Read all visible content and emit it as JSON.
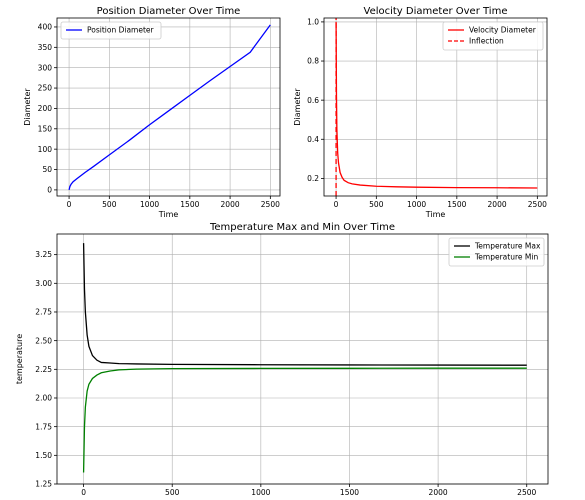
{
  "chart_data": [
    {
      "type": "line",
      "title": "Position Diameter Over Time",
      "xlabel": "Time",
      "ylabel": "Diameter",
      "xlim": [
        -150,
        2620
      ],
      "ylim": [
        -15,
        422
      ],
      "xticks": [
        0,
        500,
        1000,
        1500,
        2000,
        2500
      ],
      "yticks": [
        0,
        50,
        100,
        150,
        200,
        250,
        300,
        350,
        400
      ],
      "grid": true,
      "legend": "top-left",
      "series": [
        {
          "name": "Position Diameter",
          "color": "#0000ff",
          "x": [
            0,
            10,
            25,
            50,
            100,
            200,
            300,
            500,
            750,
            1000,
            1250,
            1500,
            1750,
            2000,
            2250,
            2500
          ],
          "y": [
            0,
            8,
            14,
            20,
            28,
            43,
            57,
            86,
            122,
            160,
            196,
            232,
            268,
            303,
            338,
            405
          ]
        }
      ]
    },
    {
      "type": "line",
      "title": "Velocity Diameter Over Time",
      "xlabel": "Time",
      "ylabel": "Diameter",
      "xlim": [
        -150,
        2620
      ],
      "ylim": [
        0.11,
        1.02
      ],
      "xticks": [
        0,
        500,
        1000,
        1500,
        2000,
        2500
      ],
      "yticks": [
        0.2,
        0.4,
        0.6,
        0.8,
        1.0
      ],
      "ytick_labels": [
        "0.2",
        "0.4",
        "0.6",
        "0.8",
        "1.0"
      ],
      "grid": true,
      "legend": "top-right",
      "series": [
        {
          "name": "Velocity Diameter",
          "color": "#ff0000",
          "x": [
            0,
            5,
            10,
            20,
            30,
            50,
            75,
            100,
            150,
            200,
            300,
            500,
            750,
            1000,
            1500,
            2000,
            2500
          ],
          "y": [
            1.0,
            0.62,
            0.45,
            0.33,
            0.28,
            0.23,
            0.205,
            0.19,
            0.178,
            0.172,
            0.166,
            0.16,
            0.157,
            0.155,
            0.153,
            0.152,
            0.151
          ]
        },
        {
          "name": "Inflection",
          "color": "#ff0000",
          "style": "dashed",
          "x": [
            0,
            0
          ],
          "y": [
            0.11,
            1.02
          ]
        }
      ]
    },
    {
      "type": "line",
      "title": "Temperature Max and Min Over Time",
      "xlabel": "",
      "ylabel": "temperature",
      "xlim": [
        -150,
        2620
      ],
      "ylim": [
        1.25,
        3.43
      ],
      "xticks": [
        0,
        500,
        1000,
        1500,
        2000,
        2500
      ],
      "yticks": [
        1.25,
        1.5,
        1.75,
        2.0,
        2.25,
        2.5,
        2.75,
        3.0,
        3.25
      ],
      "ytick_labels": [
        "1.25",
        "1.50",
        "1.75",
        "2.00",
        "2.25",
        "2.50",
        "2.75",
        "3.00",
        "3.25"
      ],
      "grid": true,
      "legend": "top-right",
      "series": [
        {
          "name": "Temperature Max",
          "color": "#000000",
          "x": [
            0,
            5,
            10,
            20,
            30,
            50,
            75,
            100,
            150,
            200,
            300,
            500,
            1000,
            1500,
            2000,
            2500
          ],
          "y": [
            3.35,
            2.95,
            2.75,
            2.55,
            2.45,
            2.37,
            2.33,
            2.31,
            2.305,
            2.3,
            2.297,
            2.293,
            2.29,
            2.288,
            2.287,
            2.286
          ]
        },
        {
          "name": "Temperature Min",
          "color": "#008000",
          "x": [
            0,
            5,
            10,
            20,
            30,
            50,
            75,
            100,
            150,
            200,
            300,
            500,
            1000,
            1500,
            2000,
            2500
          ],
          "y": [
            1.35,
            1.75,
            1.92,
            2.06,
            2.12,
            2.17,
            2.2,
            2.22,
            2.235,
            2.245,
            2.252,
            2.256,
            2.258,
            2.259,
            2.26,
            2.26
          ]
        }
      ]
    }
  ]
}
